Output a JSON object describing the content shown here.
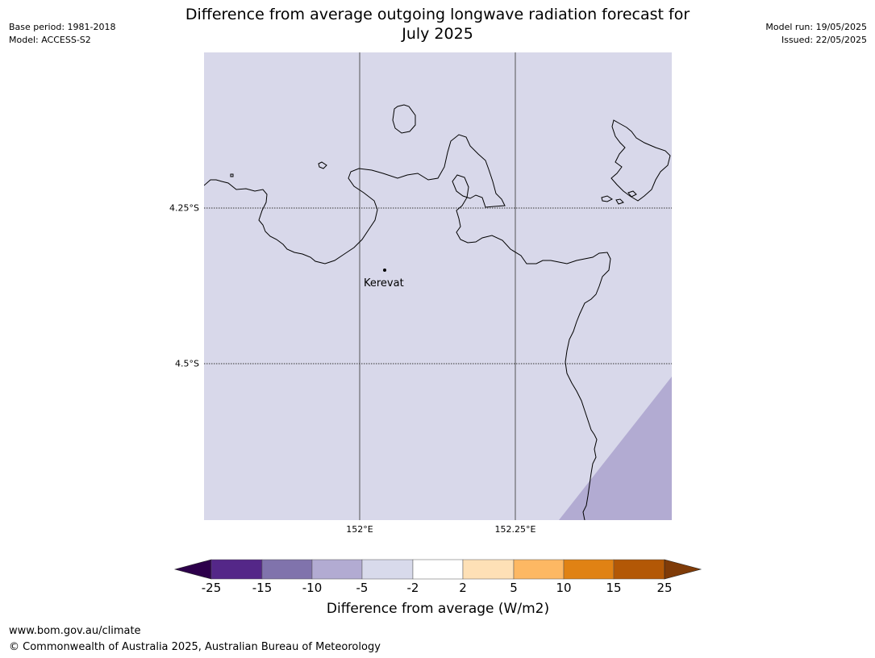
{
  "header": {
    "base_period": "Base period: 1981-2018",
    "model": "Model: ACCESS-S2",
    "model_run": "Model run: 19/05/2025",
    "issued": "Issued: 22/05/2025",
    "title_line1": "Difference from average outgoing longwave radiation forecast for",
    "title_line2": "July 2025"
  },
  "map": {
    "base_color": "#d8d8ea",
    "anomaly_color": "#b2abd2",
    "coast_color": "#000000",
    "gridline_color": "#555555",
    "place_name": "Kerevat",
    "lat_labels": [
      "4.25°S",
      "4.5°S"
    ],
    "lon_labels": [
      "152°E",
      "152.25°E"
    ]
  },
  "colorbar": {
    "colors": [
      "#2d004b",
      "#542788",
      "#8073ac",
      "#b2abd2",
      "#d8daeb",
      "#ffffff",
      "#fee0b6",
      "#fdb863",
      "#e08214",
      "#b35806",
      "#7f3b08"
    ],
    "ticks": [
      "-25",
      "-15",
      "-10",
      "-5",
      "-2",
      "2",
      "5",
      "10",
      "15",
      "25"
    ],
    "label": "Difference from average (W/m2)"
  },
  "footer": {
    "url": "www.bom.gov.au/climate",
    "copyright": "© Commonwealth of Australia 2025, Australian Bureau of Meteorology"
  }
}
